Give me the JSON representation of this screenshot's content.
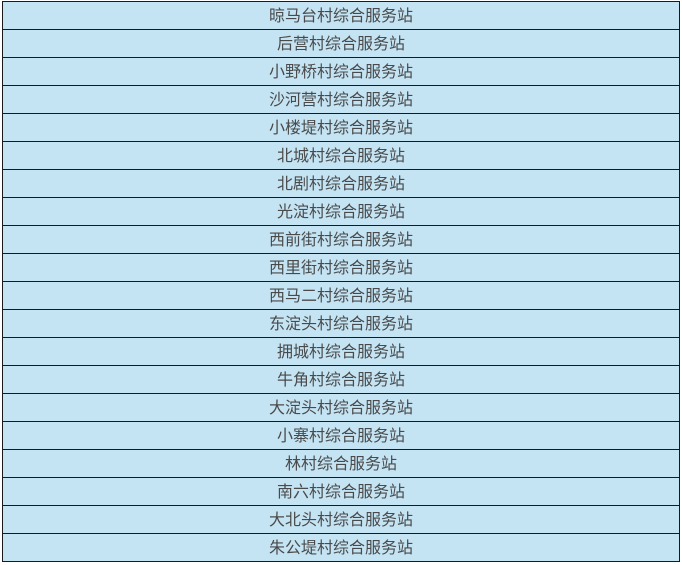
{
  "table": {
    "background_color": "#c4e4f4",
    "rows": [
      "晾马台村综合服务站",
      "后营村综合服务站",
      "小野桥村综合服务站",
      "沙河营村综合服务站",
      "小楼堤村综合服务站",
      "北城村综合服务站",
      "北剧村综合服务站",
      "光淀村综合服务站",
      "西前街村综合服务站",
      "西里街村综合服务站",
      "西马二村综合服务站",
      "东淀头村综合服务站",
      "拥城村综合服务站",
      "牛角村综合服务站",
      "大淀头村综合服务站",
      "小寨村综合服务站",
      "林村综合服务站",
      "南六村综合服务站",
      "大北头村综合服务站",
      "朱公堤村综合服务站"
    ]
  }
}
